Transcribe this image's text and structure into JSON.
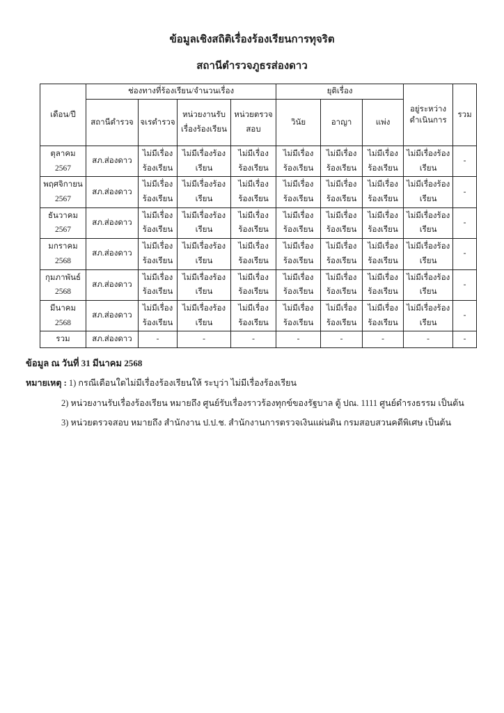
{
  "document": {
    "title": "ข้อมูลเชิงสถิติเรื่องร้องเรียนการทุจริต",
    "subtitle": "สถานีตำรวจภูธรส่องดาว"
  },
  "table": {
    "header": {
      "month_year": "เดือน/ปี",
      "channels_group": "ช่องทางที่ร้องเรียน/จำนวนเรื่อง",
      "police_station": "สถานีตำรวจ",
      "police_inspector": "จเรตำรวจ",
      "complaint_agency": "หน่วยงานรับ​เรื่อง​ร้องเรียน",
      "audit_unit": "หน่วย​ตรวจสอบ",
      "concluded_group": "ยุติเรื่อง",
      "disciplinary": "วินัย",
      "criminal": "อาญา",
      "civil": "แพ่ง",
      "in_progress": "อยู่ระหว่าง​ดำเนินการ",
      "total": "รวม"
    },
    "no_complaints_text": "ไม่มีเรื่องร้องเรียน",
    "rows": [
      {
        "month": "ตุลาคม",
        "year": "2567",
        "station": "สภ.ส่องดาว",
        "cells": [
          "ไม่มีเรื่อง​ร้องเรียน",
          "ไม่มีเรื่อง​ร้องเรียน",
          "ไม่มีเรื่อง​ร้องเรียน",
          "ไม่มีเรื่อง​ร้องเรียน",
          "ไม่มีเรื่อง​ร้องเรียน",
          "ไม่มีเรื่อง​ร้องเรียน",
          "ไม่มีเรื่อง​ร้องเรียน"
        ],
        "total": "-"
      },
      {
        "month": "พฤศจิกายน",
        "year": "2567",
        "station": "สภ.ส่องดาว",
        "cells": [
          "ไม่มีเรื่อง​ร้องเรียน",
          "ไม่มีเรื่อง​ร้องเรียน",
          "ไม่มีเรื่อง​ร้องเรียน",
          "ไม่มีเรื่อง​ร้องเรียน",
          "ไม่มีเรื่อง​ร้องเรียน",
          "ไม่มีเรื่อง​ร้องเรียน",
          "ไม่มีเรื่อง​ร้องเรียน"
        ],
        "total": "-"
      },
      {
        "month": "ธันวาคม",
        "year": "2567",
        "station": "สภ.ส่องดาว",
        "cells": [
          "ไม่มีเรื่อง​ร้องเรียน",
          "ไม่มีเรื่อง​ร้องเรียน",
          "ไม่มีเรื่อง​ร้องเรียน",
          "ไม่มีเรื่อง​ร้องเรียน",
          "ไม่มีเรื่อง​ร้องเรียน",
          "ไม่มีเรื่อง​ร้องเรียน",
          "ไม่มีเรื่อง​ร้องเรียน"
        ],
        "total": "-"
      },
      {
        "month": "มกราคม",
        "year": "2568",
        "station": "สภ.ส่องดาว",
        "cells": [
          "ไม่มีเรื่อง​ร้องเรียน",
          "ไม่มีเรื่อง​ร้องเรียน",
          "ไม่มีเรื่อง​ร้องเรียน",
          "ไม่มีเรื่อง​ร้องเรียน",
          "ไม่มีเรื่อง​ร้องเรียน",
          "ไม่มีเรื่อง​ร้องเรียน",
          "ไม่มีเรื่อง​ร้องเรียน"
        ],
        "total": "-"
      },
      {
        "month": "กุมภาพันธ์",
        "year": "2568",
        "station": "สภ.ส่องดาว",
        "cells": [
          "ไม่มีเรื่อง​ร้องเรียน",
          "ไม่มีเรื่อง​ร้องเรียน",
          "ไม่มีเรื่อง​ร้องเรียน",
          "ไม่มีเรื่อง​ร้องเรียน",
          "ไม่มีเรื่อง​ร้องเรียน",
          "ไม่มีเรื่อง​ร้องเรียน",
          "ไม่มีเรื่อง​ร้องเรียน"
        ],
        "total": "-"
      },
      {
        "month": "มีนาคม",
        "year": "2568",
        "station": "สภ.ส่องดาว",
        "cells": [
          "ไม่มีเรื่อง​ร้องเรียน",
          "ไม่มีเรื่อง​ร้องเรียน",
          "ไม่มีเรื่อง​ร้องเรียน",
          "ไม่มีเรื่อง​ร้องเรียน",
          "ไม่มีเรื่อง​ร้องเรียน",
          "ไม่มีเรื่อง​ร้องเรียน",
          "ไม่มีเรื่อง​ร้องเรียน"
        ],
        "total": "-"
      }
    ],
    "total_row": {
      "label": "รวม",
      "station": "สภ.ส่องดาว",
      "cells": [
        "-",
        "-",
        "-",
        "-",
        "-",
        "-",
        "-"
      ],
      "total": "-"
    }
  },
  "footer": {
    "as_of": "ข้อมูล ณ วันที่ 31 มีนาคม 2568",
    "note_label": "หมายเหตุ :",
    "notes": [
      "1) กรณีเดือนใดไม่มีเรื่องร้องเรียนให้ ระบุว่า ไม่มีเรื่องร้องเรียน",
      "2) หน่วยงานรับเรื่องร้องเรียน หมายถึง ศูนย์รับเรื่องราวร้องทุกข์ของรัฐบาล ตู้ ปณ. 1111 ศูนย์ดำรงธรรม เป็นต้น",
      "3) หน่วยตรวจสอบ หมายถึง สำนักงาน ป.ป.ช. สำนักงานการตรวจเงินแผ่นดิน กรมสอบสวนคดีพิเศษ เป็นต้น"
    ]
  }
}
